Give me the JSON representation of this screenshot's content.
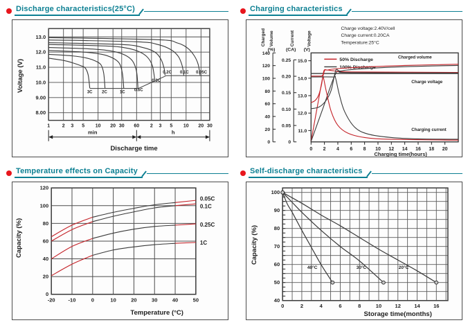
{
  "colors": {
    "teal": "#0b7f92",
    "red_bullet": "#e8161d",
    "line_dark": "#3a3a3a",
    "line_red": "#c42127",
    "grid": "#4d4d4d",
    "grid_fine": "#5a5a5a",
    "panel_border": "#4a4a4a"
  },
  "sections": [
    {
      "title": "Discharge characteristics(25°C)"
    },
    {
      "title": "Charging characteristics"
    },
    {
      "title": "Temperature effects on Capacity"
    },
    {
      "title": "Self-discharge characteristics"
    }
  ],
  "chart_data": [
    {
      "id": "discharge",
      "type": "line",
      "title": "Discharge characteristics(25°C)",
      "xlabel": "Discharge time",
      "ylabel": "Voltage (V)",
      "x_scale": "log-minutes",
      "xlim_minutes": [
        1,
        1800
      ],
      "ylim": [
        7.5,
        13.55
      ],
      "x_ticks": [
        {
          "t": 1,
          "label": "1"
        },
        {
          "t": 2,
          "label": "2"
        },
        {
          "t": 3,
          "label": "3"
        },
        {
          "t": 5,
          "label": "5"
        },
        {
          "t": 10,
          "label": "10"
        },
        {
          "t": 20,
          "label": "20"
        },
        {
          "t": 30,
          "label": "30"
        },
        {
          "t": 60,
          "label": "60"
        },
        {
          "t": 120,
          "label": "2"
        },
        {
          "t": 180,
          "label": "3"
        },
        {
          "t": 300,
          "label": "5"
        },
        {
          "t": 600,
          "label": "10"
        },
        {
          "t": 1200,
          "label": "20"
        },
        {
          "t": 1800,
          "label": "30"
        }
      ],
      "y_ticks": [
        {
          "v": 13,
          "label": "13.0"
        },
        {
          "v": 12,
          "label": "12.0"
        },
        {
          "v": 11,
          "label": "11.0"
        },
        {
          "v": 10,
          "label": "10.0"
        },
        {
          "v": 9,
          "label": "9.00"
        },
        {
          "v": 8,
          "label": "8.00"
        }
      ],
      "unit_spans": [
        {
          "label": "min",
          "from": 1,
          "to": 60
        },
        {
          "label": "h",
          "from": 60,
          "to": 1800
        }
      ],
      "cutoff_line": [
        [
          6.8,
          9.6
        ],
        [
          65,
          9.6
        ],
        [
          240,
          10.45
        ],
        [
          1800,
          10.45
        ]
      ],
      "series": [
        {
          "label": "3C",
          "label_at": [
            6.8,
            9.28
          ],
          "points": [
            [
              1,
              11.6
            ],
            [
              2,
              11.45
            ],
            [
              3,
              11.3
            ],
            [
              4.5,
              11.1
            ],
            [
              5.5,
              10.95
            ],
            [
              6.3,
              10.5
            ],
            [
              6.8,
              9.62
            ]
          ]
        },
        {
          "label": "2C",
          "label_at": [
            13.5,
            9.28
          ],
          "points": [
            [
              1,
              11.85
            ],
            [
              3,
              11.75
            ],
            [
              6,
              11.6
            ],
            [
              9,
              11.4
            ],
            [
              11.5,
              11.15
            ],
            [
              13,
              10.6
            ],
            [
              13.8,
              9.62
            ]
          ]
        },
        {
          "label": "1C",
          "label_at": [
            31,
            9.28
          ],
          "points": [
            [
              1,
              12.1
            ],
            [
              5,
              12.0
            ],
            [
              12,
              11.85
            ],
            [
              20,
              11.6
            ],
            [
              27,
              11.25
            ],
            [
              31,
              10.6
            ],
            [
              33,
              9.62
            ]
          ]
        },
        {
          "label": "0.6C",
          "label_at": [
            66,
            9.42
          ],
          "points": [
            [
              1,
              12.3
            ],
            [
              8,
              12.2
            ],
            [
              20,
              12.05
            ],
            [
              35,
              11.8
            ],
            [
              50,
              11.4
            ],
            [
              60,
              10.7
            ],
            [
              64,
              9.62
            ]
          ]
        },
        {
          "label": "0.3C",
          "label_at": [
            150,
            10.05
          ],
          "points": [
            [
              1,
              12.5
            ],
            [
              15,
              12.4
            ],
            [
              40,
              12.25
            ],
            [
              70,
              12.0
            ],
            [
              100,
              11.65
            ],
            [
              125,
              11.1
            ],
            [
              140,
              10.15
            ]
          ]
        },
        {
          "label": "0.2C",
          "label_at": [
            250,
            10.6
          ],
          "points": [
            [
              1,
              12.62
            ],
            [
              30,
              12.5
            ],
            [
              80,
              12.3
            ],
            [
              140,
              12.0
            ],
            [
              185,
              11.55
            ],
            [
              215,
              10.95
            ],
            [
              225,
              10.47
            ]
          ]
        },
        {
          "label": "0.1C",
          "label_at": [
            555,
            10.6
          ],
          "points": [
            [
              1,
              12.8
            ],
            [
              60,
              12.68
            ],
            [
              160,
              12.5
            ],
            [
              300,
              12.15
            ],
            [
              420,
              11.7
            ],
            [
              500,
              11.1
            ],
            [
              540,
              10.47
            ]
          ]
        },
        {
          "label": "0.05C",
          "label_at": [
            1230,
            10.6
          ],
          "points": [
            [
              1,
              12.95
            ],
            [
              150,
              12.82
            ],
            [
              400,
              12.6
            ],
            [
              650,
              12.25
            ],
            [
              880,
              11.75
            ],
            [
              1050,
              11.2
            ],
            [
              1150,
              10.47
            ]
          ]
        }
      ]
    },
    {
      "id": "charging",
      "type": "line",
      "title": "Charging characteristics",
      "xlabel": "Charging time(hours)",
      "annotations": [
        "Charge voltage:2.40V/cell",
        "Charge current:0.20CA",
        "Temperature:25°C"
      ],
      "legend": [
        {
          "label": "50% Discharge",
          "color": "red"
        },
        {
          "label": "100% Discharge",
          "color": "dark"
        }
      ],
      "axes": {
        "percent": {
          "title_lines": [
            "Charged",
            "Volume"
          ],
          "unit": "(%)",
          "ticks": [
            0,
            20,
            40,
            60,
            80,
            100,
            120,
            140
          ]
        },
        "current": {
          "title_lines": [
            "Current"
          ],
          "unit": "(CA)",
          "ticks": [
            "0",
            "0.05",
            "0.10",
            "0.15",
            "0.20",
            "0.25"
          ]
        },
        "voltage": {
          "title_lines": [
            "Voltage"
          ],
          "unit": "(V)",
          "ticks": [
            "11.0",
            "12.0",
            "13.0",
            "14.0",
            "15.0"
          ]
        }
      },
      "x_ticks": [
        0,
        2,
        4,
        6,
        8,
        10,
        12,
        14,
        16,
        18,
        20
      ],
      "xlim": [
        0,
        22
      ],
      "charge_voltage_line_v": 14.27,
      "curve_labels": [
        {
          "text": "Charged volume",
          "at": [
            13,
            15.12
          ]
        },
        {
          "text": "Charge voltage",
          "at": [
            15,
            13.72
          ]
        },
        {
          "text": "Charging current",
          "at": [
            15,
            10.98
          ]
        }
      ],
      "series": [
        {
          "name": "charged_volume_50",
          "color": "red",
          "points_v": [
            [
              0,
              10.38
            ],
            [
              1,
              12.5
            ],
            [
              1.9,
              14.3
            ],
            [
              2.5,
              14.47
            ],
            [
              4,
              14.55
            ],
            [
              8,
              14.64
            ],
            [
              14,
              14.73
            ],
            [
              22,
              14.8
            ]
          ]
        },
        {
          "name": "charged_volume_100",
          "color": "dark",
          "points_v": [
            [
              0,
              10.38
            ],
            [
              1.8,
              12.3
            ],
            [
              3.6,
              14.2
            ],
            [
              4.6,
              14.42
            ],
            [
              7,
              14.52
            ],
            [
              12,
              14.63
            ],
            [
              18,
              14.7
            ],
            [
              22,
              14.73
            ]
          ]
        },
        {
          "name": "charge_voltage_50",
          "color": "red",
          "points_v": [
            [
              0,
              12.6
            ],
            [
              0.6,
              12.72
            ],
            [
              1.1,
              13.0
            ],
            [
              1.55,
              13.6
            ],
            [
              1.9,
              14.4
            ],
            [
              2.3,
              14.47
            ],
            [
              3.5,
              14.42
            ],
            [
              6,
              14.36
            ],
            [
              22,
              14.33
            ]
          ]
        },
        {
          "name": "charge_voltage_100",
          "color": "dark",
          "points_v": [
            [
              0,
              12.25
            ],
            [
              1.2,
              12.35
            ],
            [
              2.2,
              12.7
            ],
            [
              3,
              13.3
            ],
            [
              3.7,
              14.45
            ],
            [
              4.3,
              14.38
            ],
            [
              6,
              14.32
            ],
            [
              22,
              14.3
            ]
          ]
        },
        {
          "name": "charging_current_50",
          "color": "red",
          "points_v": [
            [
              0,
              14.12
            ],
            [
              1.5,
              14.12
            ],
            [
              1.8,
              14.1
            ],
            [
              2.3,
              13.2
            ],
            [
              3,
              12.1
            ],
            [
              4,
              11.3
            ],
            [
              5.5,
              10.85
            ],
            [
              8,
              10.6
            ],
            [
              12,
              10.5
            ],
            [
              22,
              10.45
            ]
          ]
        },
        {
          "name": "charging_current_100",
          "color": "dark",
          "points_v": [
            [
              0,
              14.07
            ],
            [
              3.3,
              14.07
            ],
            [
              3.65,
              14.02
            ],
            [
              4.2,
              13.1
            ],
            [
              5,
              12.1
            ],
            [
              6.5,
              11.2
            ],
            [
              8.5,
              10.8
            ],
            [
              12,
              10.6
            ],
            [
              16,
              10.52
            ],
            [
              22,
              10.5
            ]
          ]
        }
      ]
    },
    {
      "id": "temperature_effects",
      "type": "line",
      "title": "Temperature effects on Capacity",
      "xlabel": "Temperature (°C)",
      "ylabel": "Capacity (%)",
      "x_ticks": [
        -20,
        -10,
        0,
        10,
        20,
        30,
        40,
        50
      ],
      "y_ticks": [
        0,
        20,
        40,
        60,
        80,
        100,
        120
      ],
      "xlim": [
        -20,
        50
      ],
      "ylim": [
        0,
        120
      ],
      "red_segment_below_x": 0,
      "red_segment_above_x": 40,
      "series": [
        {
          "label": "0.05C",
          "label_y": 107.5,
          "points": [
            [
              -20,
              65
            ],
            [
              -10,
              78
            ],
            [
              0,
              87
            ],
            [
              10,
              92.5
            ],
            [
              20,
              97
            ],
            [
              30,
              101
            ],
            [
              40,
              103.5
            ],
            [
              50,
              106
            ]
          ]
        },
        {
          "label": "0.1C",
          "label_y": 99,
          "points": [
            [
              -20,
              60
            ],
            [
              -10,
              73
            ],
            [
              0,
              82
            ],
            [
              10,
              88
            ],
            [
              20,
              93
            ],
            [
              30,
              97.5
            ],
            [
              40,
              100
            ],
            [
              50,
              102
            ]
          ]
        },
        {
          "label": "0.25C",
          "label_y": 78.5,
          "points": [
            [
              -20,
              40
            ],
            [
              -10,
              54
            ],
            [
              0,
              63
            ],
            [
              10,
              69
            ],
            [
              20,
              73.5
            ],
            [
              30,
              76.5
            ],
            [
              40,
              78
            ],
            [
              50,
              79.5
            ]
          ]
        },
        {
          "label": "1C",
          "label_y": 58,
          "points": [
            [
              -20,
              21
            ],
            [
              -10,
              34
            ],
            [
              0,
              44
            ],
            [
              10,
              50
            ],
            [
              20,
              53.5
            ],
            [
              30,
              56
            ],
            [
              40,
              57.5
            ],
            [
              50,
              58.5
            ]
          ]
        }
      ]
    },
    {
      "id": "self_discharge",
      "type": "line",
      "title": "Self-discharge characteristics",
      "xlabel": "Storage time(months)",
      "ylabel": "Capacity (%)",
      "x_ticks": [
        0,
        2,
        4,
        6,
        8,
        10,
        12,
        14,
        16
      ],
      "y_ticks": [
        40,
        50,
        60,
        70,
        80,
        90,
        100
      ],
      "xlim": [
        0,
        17.2
      ],
      "ylim": [
        40,
        102.5
      ],
      "grid_minor_x": 1,
      "grid_minor_y": 5,
      "series": [
        {
          "label": "40°C",
          "label_at": [
            3.1,
            57.5
          ],
          "points": [
            [
              0,
              100
            ],
            [
              0.5,
              93.5
            ],
            [
              1,
              89
            ],
            [
              2,
              79
            ],
            [
              3,
              69.5
            ],
            [
              4,
              60
            ],
            [
              5.2,
              50
            ]
          ]
        },
        {
          "label": "30°C",
          "label_at": [
            8.2,
            57.5
          ],
          "points": [
            [
              0,
              100
            ],
            [
              1,
              94.5
            ],
            [
              2,
              89
            ],
            [
              4,
              79
            ],
            [
              6,
              70
            ],
            [
              8,
              62
            ],
            [
              10.5,
              50
            ]
          ]
        },
        {
          "label": "20°C",
          "label_at": [
            12.6,
            57.5
          ],
          "points": [
            [
              0,
              100
            ],
            [
              2,
              94
            ],
            [
              4,
              87.5
            ],
            [
              6,
              81.5
            ],
            [
              8,
              75
            ],
            [
              10,
              68.5
            ],
            [
              12,
              62.5
            ],
            [
              14,
              56.5
            ],
            [
              16,
              50
            ]
          ]
        }
      ]
    }
  ]
}
